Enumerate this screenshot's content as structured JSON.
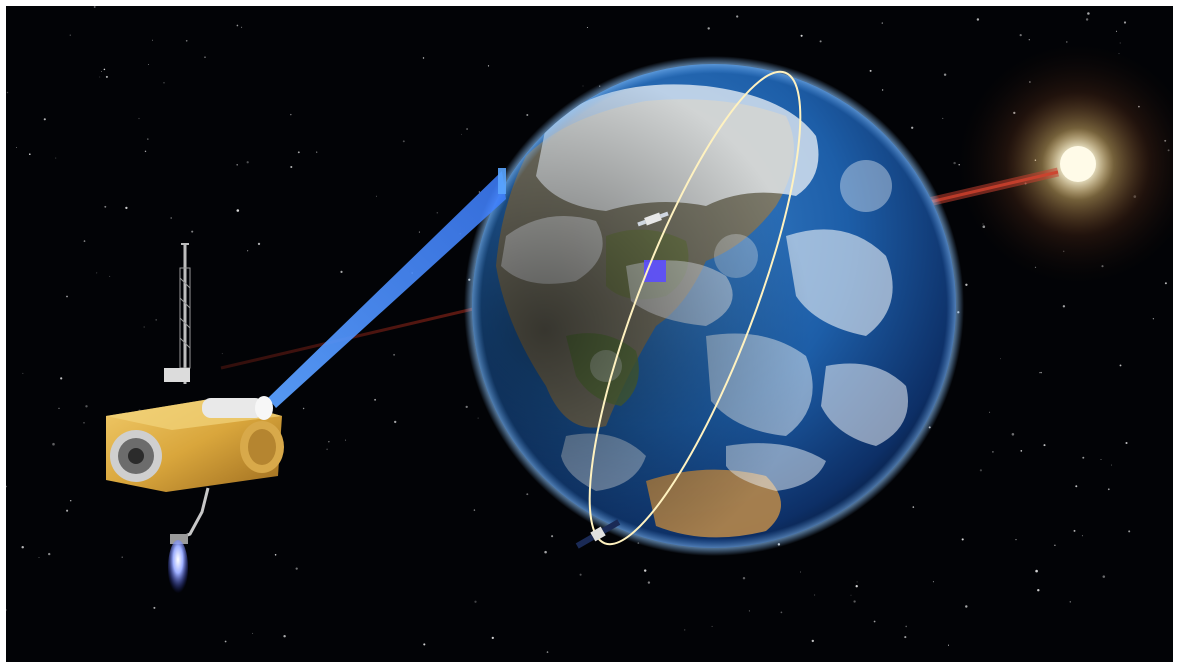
{
  "scene": {
    "colors": {
      "space": "#020306",
      "earth_ocean": "#1d5ea8",
      "cloud": "#eef3f8",
      "sun_core": "#fffbe8",
      "sun_glow": "#ffd27a",
      "laser": "#c0301e",
      "beam": "#3d8dff",
      "ground_target": "#5b4dff",
      "orbit": "#fff2c0",
      "satellite_gold": "#d9a63c",
      "thruster_plume": "#7f90ff"
    },
    "objects": [
      "starfield",
      "earth",
      "sun",
      "laser-line",
      "sensor-beam",
      "ground-target",
      "orbit-ring",
      "main-satellite",
      "small-satellite-on-orbit",
      "small-satellite-over-land"
    ]
  }
}
